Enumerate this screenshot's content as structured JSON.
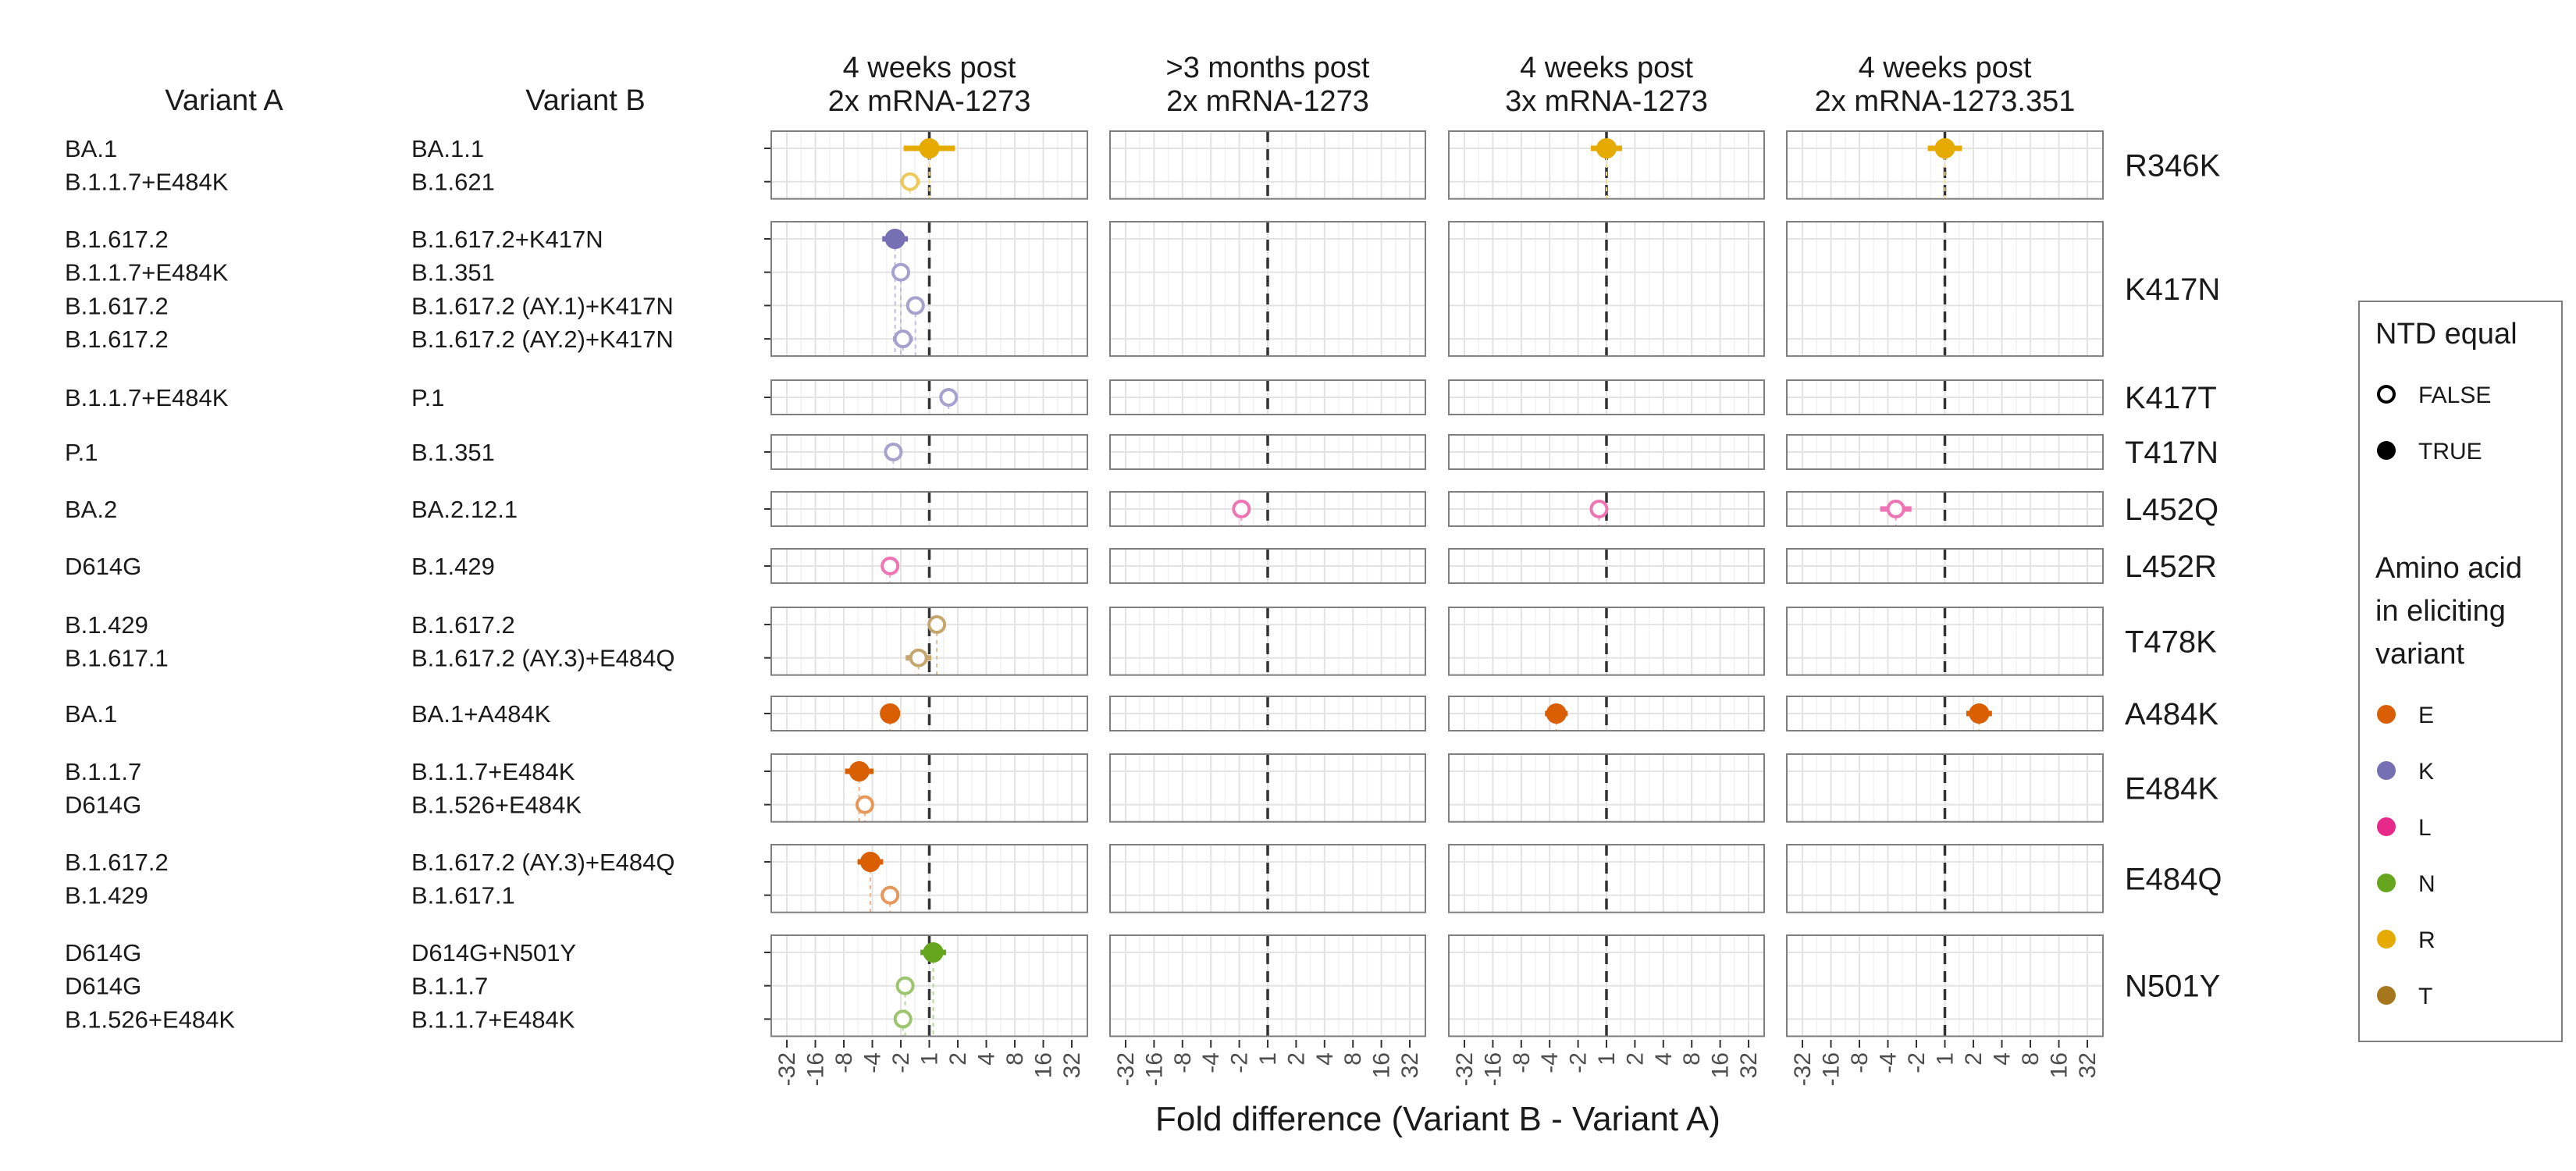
{
  "headers": {
    "variant_a": "Variant A",
    "variant_b": "Variant B"
  },
  "panel_titles": [
    [
      "4 weeks post",
      "2x mRNA-1273"
    ],
    [
      ">3 months post",
      "2x mRNA-1273"
    ],
    [
      "4 weeks post",
      "3x mRNA-1273"
    ],
    [
      "4 weeks post",
      "2x mRNA-1273.351"
    ]
  ],
  "colors": {
    "E": "#d95f02",
    "K": "#7570b3",
    "L": "#e7298a",
    "N": "#66a61e",
    "R": "#e6ab02",
    "T": "#a6761d"
  },
  "chart_data": {
    "type": "scatter",
    "xlabel": "Fold difference (Variant B - Variant A)",
    "x_scale": "signed-log2",
    "x_ticks": [
      "-32",
      "-16",
      "-8",
      "-4",
      "-2",
      "1",
      "2",
      "4",
      "8",
      "16",
      "32"
    ],
    "xlim": [
      -32,
      32
    ],
    "reference_line": 1,
    "facets": [
      {
        "mutation": "R346K",
        "rows": [
          {
            "a": "BA.1",
            "b": "BA.1.1",
            "ntd_equal": true,
            "aa": "R",
            "values": [
              1.0,
              null,
              1.0,
              1.0
            ],
            "err": [
              0.9,
              null,
              0.55,
              0.6
            ]
          },
          {
            "a": "B.1.1.7+E484K",
            "b": "B.1.621",
            "ntd_equal": false,
            "aa": "R",
            "values": [
              -1.6,
              null,
              null,
              null
            ],
            "err": [
              0.35,
              null,
              null,
              null
            ]
          }
        ]
      },
      {
        "mutation": "K417N",
        "rows": [
          {
            "a": "B.1.617.2",
            "b": "B.1.617.2+K417N",
            "ntd_equal": true,
            "aa": "K",
            "values": [
              -2.3,
              null,
              null,
              null
            ],
            "err": [
              0.45,
              null,
              null,
              null
            ]
          },
          {
            "a": "B.1.1.7+E484K",
            "b": "B.1.351",
            "ntd_equal": false,
            "aa": "K",
            "values": [
              -2.0,
              null,
              null,
              null
            ],
            "err": [
              0.3,
              null,
              null,
              null
            ]
          },
          {
            "a": "B.1.617.2",
            "b": "B.1.617.2 (AY.1)+K417N",
            "ntd_equal": false,
            "aa": "K",
            "values": [
              -1.4,
              null,
              null,
              null
            ],
            "err": [
              0.3,
              null,
              null,
              null
            ]
          },
          {
            "a": "B.1.617.2",
            "b": "B.1.617.2 (AY.2)+K417N",
            "ntd_equal": false,
            "aa": "K",
            "values": [
              -1.9,
              null,
              null,
              null
            ],
            "err": [
              0.35,
              null,
              null,
              null
            ]
          }
        ]
      },
      {
        "mutation": "K417T",
        "rows": [
          {
            "a": "B.1.1.7+E484K",
            "b": "P.1",
            "ntd_equal": false,
            "aa": "K",
            "values": [
              1.6,
              null,
              null,
              null
            ],
            "err": [
              0.3,
              null,
              null,
              null
            ]
          }
        ]
      },
      {
        "mutation": "T417N",
        "rows": [
          {
            "a": "P.1",
            "b": "B.1.351",
            "ntd_equal": false,
            "aa": "K",
            "values": [
              -2.4,
              null,
              null,
              null
            ],
            "err": [
              0.15,
              null,
              null,
              null
            ]
          }
        ]
      },
      {
        "mutation": "L452Q",
        "rows": [
          {
            "a": "BA.2",
            "b": "BA.2.12.1",
            "ntd_equal": false,
            "aa": "L",
            "values": [
              null,
              -1.9,
              -1.2,
              -3.3
            ],
            "err": [
              null,
              0.3,
              0.2,
              0.55
            ]
          }
        ]
      },
      {
        "mutation": "L452R",
        "rows": [
          {
            "a": "D614G",
            "b": "B.1.429",
            "ntd_equal": false,
            "aa": "L",
            "values": [
              -2.6,
              null,
              null,
              null
            ],
            "err": [
              0.2,
              null,
              null,
              null
            ]
          }
        ]
      },
      {
        "mutation": "T478K",
        "rows": [
          {
            "a": "B.1.429",
            "b": "B.1.617.2",
            "ntd_equal": false,
            "aa": "T",
            "values": [
              1.2,
              null,
              null,
              null
            ],
            "err": [
              0.2,
              null,
              null,
              null
            ]
          },
          {
            "a": "B.1.617.1",
            "b": "B.1.617.2 (AY.3)+E484Q",
            "ntd_equal": false,
            "aa": "T",
            "values": [
              -1.3,
              null,
              null,
              null
            ],
            "err": [
              0.45,
              null,
              null,
              null
            ]
          }
        ]
      },
      {
        "mutation": "A484K",
        "rows": [
          {
            "a": "BA.1",
            "b": "BA.1+A484K",
            "ntd_equal": true,
            "aa": "E",
            "values": [
              -2.6,
              null,
              -3.4,
              2.3
            ],
            "err": [
              0.35,
              null,
              0.4,
              0.45
            ]
          }
        ]
      },
      {
        "mutation": "E484K",
        "rows": [
          {
            "a": "B.1.1.7",
            "b": "B.1.1.7+E484K",
            "ntd_equal": true,
            "aa": "E",
            "values": [
              -5.5,
              null,
              null,
              null
            ],
            "err": [
              0.5,
              null,
              null,
              null
            ]
          },
          {
            "a": "D614G",
            "b": "B.1.526+E484K",
            "ntd_equal": false,
            "aa": "E",
            "values": [
              -4.8,
              null,
              null,
              null
            ],
            "err": [
              0.3,
              null,
              null,
              null
            ]
          }
        ]
      },
      {
        "mutation": "E484Q",
        "rows": [
          {
            "a": "B.1.617.2",
            "b": "B.1.617.2 (AY.3)+E484Q",
            "ntd_equal": true,
            "aa": "E",
            "values": [
              -4.2,
              null,
              null,
              null
            ],
            "err": [
              0.45,
              null,
              null,
              null
            ]
          },
          {
            "a": "B.1.429",
            "b": "B.1.617.1",
            "ntd_equal": false,
            "aa": "E",
            "values": [
              -2.6,
              null,
              null,
              null
            ],
            "err": [
              0.25,
              null,
              null,
              null
            ]
          }
        ]
      },
      {
        "mutation": "N501Y",
        "rows": [
          {
            "a": "D614G",
            "b": "D614G+N501Y",
            "ntd_equal": true,
            "aa": "N",
            "values": [
              1.1,
              null,
              null,
              null
            ],
            "err": [
              0.45,
              null,
              null,
              null
            ]
          },
          {
            "a": "D614G",
            "b": "B.1.1.7",
            "ntd_equal": false,
            "aa": "N",
            "values": [
              -1.8,
              null,
              null,
              null
            ],
            "err": [
              0.2,
              null,
              null,
              null
            ]
          },
          {
            "a": "B.1.526+E484K",
            "b": "B.1.1.7+E484K",
            "ntd_equal": false,
            "aa": "N",
            "values": [
              -1.9,
              null,
              null,
              null
            ],
            "err": [
              0.3,
              null,
              null,
              null
            ]
          }
        ]
      }
    ],
    "legend": {
      "placement": "right",
      "ntd_title": "NTD equal",
      "ntd_items": [
        "FALSE",
        "TRUE"
      ],
      "aa_title": [
        "Amino acid",
        "in eliciting",
        "variant"
      ],
      "aa_items": [
        "E",
        "K",
        "L",
        "N",
        "R",
        "T"
      ]
    }
  }
}
